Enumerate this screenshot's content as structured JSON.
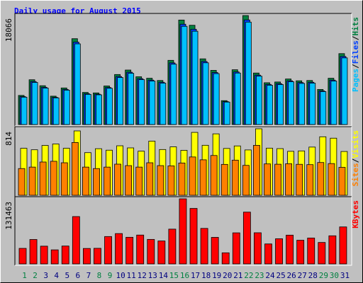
{
  "chart_data": [
    {
      "type": "bar",
      "title": "Daily usage for August 2015",
      "ylim": [
        0,
        18066
      ],
      "yticks": [
        18066
      ],
      "legend_separator": "/",
      "series": [
        {
          "name": "Hits",
          "color": "#008040",
          "values": [
            4826,
            7424,
            6434,
            4702,
            6063,
            14230,
            5321,
            5240,
            6390,
            8290,
            9033,
            7919,
            7672,
            7301,
            10641,
            17323,
            16457,
            10889,
            8980,
            3960,
            9080,
            18066,
            8538,
            6929,
            7053,
            7548,
            7250,
            7301,
            5816,
            7672,
            11755
          ]
        },
        {
          "name": "Files",
          "color": "#0040ff",
          "values": [
            4633,
            7127,
            6177,
            4514,
            5820,
            13661,
            5108,
            5030,
            6134,
            7958,
            8672,
            7602,
            7365,
            7009,
            10215,
            16630,
            15799,
            10453,
            8621,
            3802,
            8717,
            17343,
            8196,
            6652,
            6771,
            7246,
            6960,
            7009,
            5583,
            7365,
            11285
          ]
        },
        {
          "name": "Pages",
          "color": "#00c0ff",
          "values": [
            4536,
            6979,
            6048,
            4420,
            5699,
            13376,
            5002,
            4926,
            6007,
            7793,
            8491,
            7444,
            7212,
            6863,
            10003,
            16284,
            15470,
            10236,
            8441,
            3722,
            8535,
            16982,
            8026,
            6513,
            6630,
            7095,
            6815,
            6863,
            5467,
            7212,
            11050
          ]
        }
      ]
    },
    {
      "type": "bar",
      "ylim": [
        0,
        814
      ],
      "yticks": [
        814
      ],
      "legend_separator": "/",
      "series": [
        {
          "name": "Visits",
          "color": "#ffff00",
          "values": [
            575,
            557,
            610,
            628,
            575,
            788,
            522,
            570,
            552,
            606,
            580,
            540,
            663,
            560,
            593,
            550,
            770,
            612,
            752,
            573,
            604,
            555,
            814,
            577,
            571,
            538,
            543,
            590,
            716,
            699,
            536
          ]
        },
        {
          "name": "Sites",
          "color": "#ff8000",
          "values": [
            327,
            345,
            407,
            416,
            398,
            646,
            345,
            327,
            345,
            381,
            363,
            345,
            398,
            363,
            360,
            395,
            469,
            434,
            487,
            378,
            430,
            366,
            611,
            384,
            380,
            386,
            379,
            375,
            401,
            388,
            342
          ]
        }
      ]
    },
    {
      "type": "bar",
      "ylim": [
        0,
        131463
      ],
      "yticks": [
        131463
      ],
      "categories": [
        "1",
        "2",
        "3",
        "4",
        "5",
        "6",
        "7",
        "8",
        "9",
        "10",
        "11",
        "12",
        "13",
        "14",
        "15",
        "16",
        "17",
        "18",
        "19",
        "20",
        "21",
        "22",
        "23",
        "24",
        "25",
        "26",
        "27",
        "28",
        "29",
        "30",
        "31"
      ],
      "category_colors": [
        "#008040",
        "#008040",
        "#000080",
        "#000080",
        "#000080",
        "#000080",
        "#000080",
        "#008040",
        "#008040",
        "#000080",
        "#000080",
        "#000080",
        "#000080",
        "#000080",
        "#008040",
        "#008040",
        "#000080",
        "#000080",
        "#000080",
        "#000080",
        "#000080",
        "#008040",
        "#008040",
        "#000080",
        "#000080",
        "#000080",
        "#000080",
        "#000080",
        "#008040",
        "#008040",
        "#000080"
      ],
      "series": [
        {
          "name": "KBytes",
          "color": "#ff0000",
          "values": [
            31374,
            49302,
            35856,
            28386,
            36100,
            95616,
            31200,
            31500,
            55278,
            61254,
            53784,
            58266,
            49500,
            46314,
            70218,
            131463,
            112050,
            71712,
            53600,
            22410,
            62748,
            104580,
            62900,
            40338,
            50796,
            58100,
            47808,
            52290,
            43326,
            56772,
            74700
          ]
        }
      ]
    }
  ]
}
